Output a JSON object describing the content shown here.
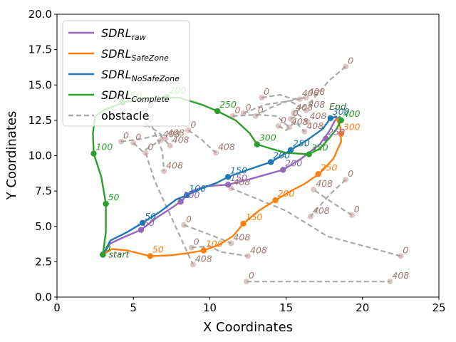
{
  "chart_data": {
    "type": "line",
    "xlabel": "X Coordinates",
    "ylabel": "Y Coordinates",
    "xlim": [
      0,
      25
    ],
    "ylim": [
      0,
      20
    ],
    "xticks": [
      "0",
      "5",
      "10",
      "15",
      "20",
      "25"
    ],
    "yticks": [
      "0.0",
      "2.5",
      "5.0",
      "7.5",
      "10.0",
      "12.5",
      "15.0",
      "17.5",
      "20.0"
    ],
    "legend_position": "top-left",
    "start_label": "start",
    "end_label": "End",
    "legend": [
      {
        "key": "raw",
        "base": "SDRL",
        "sub": "raw",
        "color": "#9467bd",
        "dashed": false
      },
      {
        "key": "safezone",
        "base": "SDRL",
        "sub": "SafeZone",
        "color": "#ff7f0e",
        "dashed": false
      },
      {
        "key": "nosafezone",
        "base": "SDRL",
        "sub": "NoSafeZone",
        "color": "#1f77b4",
        "dashed": false
      },
      {
        "key": "complete",
        "base": "SDRL",
        "sub": "Complete",
        "color": "#2ca02c",
        "dashed": false
      },
      {
        "key": "obstacle",
        "base": "obstacle",
        "sub": "",
        "color": "#aaaaaa",
        "dashed": true
      }
    ],
    "series": [
      {
        "name": "SDRL_raw",
        "color": "#9467bd",
        "path": [
          [
            3.0,
            3.0
          ],
          [
            3.5,
            3.8
          ],
          [
            4.5,
            4.3
          ],
          [
            5.5,
            4.75
          ],
          [
            6.5,
            5.6
          ],
          [
            7.5,
            6.3
          ],
          [
            8.1,
            6.75
          ],
          [
            8.8,
            7.5
          ],
          [
            9.8,
            7.85
          ],
          [
            11.2,
            7.95
          ],
          [
            12.5,
            8.3
          ],
          [
            13.8,
            8.7
          ],
          [
            14.8,
            9.0
          ],
          [
            16.0,
            9.8
          ],
          [
            17.2,
            10.8
          ],
          [
            17.8,
            11.7
          ],
          [
            18.2,
            12.5
          ],
          [
            18.5,
            12.75
          ]
        ],
        "markers": [
          {
            "x": 3.0,
            "y": 3.0,
            "label": "0"
          },
          {
            "x": 5.5,
            "y": 4.75,
            "label": "50"
          },
          {
            "x": 8.1,
            "y": 6.75,
            "label": "100"
          },
          {
            "x": 11.2,
            "y": 7.95,
            "label": "150"
          },
          {
            "x": 14.8,
            "y": 9.0,
            "label": "200"
          },
          {
            "x": 17.6,
            "y": 11.2,
            "label": "250"
          }
        ]
      },
      {
        "name": "SDRL_SafeZone",
        "color": "#ff7f0e",
        "path": [
          [
            3.0,
            3.0
          ],
          [
            3.6,
            3.4
          ],
          [
            4.6,
            3.3
          ],
          [
            6.1,
            2.9
          ],
          [
            7.4,
            2.95
          ],
          [
            8.5,
            3.1
          ],
          [
            9.6,
            3.3
          ],
          [
            10.6,
            3.7
          ],
          [
            11.5,
            4.3
          ],
          [
            12.2,
            5.2
          ],
          [
            13.2,
            6.1
          ],
          [
            14.3,
            6.85
          ],
          [
            15.3,
            7.5
          ],
          [
            16.2,
            8.0
          ],
          [
            17.2,
            8.75
          ],
          [
            18.1,
            9.8
          ],
          [
            18.6,
            11.0
          ],
          [
            18.55,
            12.0
          ],
          [
            18.3,
            12.6
          ],
          [
            18.2,
            12.8
          ]
        ],
        "markers": [
          {
            "x": 3.0,
            "y": 3.0,
            "label": "0"
          },
          {
            "x": 6.1,
            "y": 2.9,
            "label": "50"
          },
          {
            "x": 9.6,
            "y": 3.3,
            "label": "100"
          },
          {
            "x": 12.2,
            "y": 5.2,
            "label": "150"
          },
          {
            "x": 14.3,
            "y": 6.85,
            "label": "200"
          },
          {
            "x": 17.1,
            "y": 8.7,
            "label": "250"
          },
          {
            "x": 18.6,
            "y": 11.55,
            "label": "300"
          }
        ]
      },
      {
        "name": "SDRL_NoSafeZone",
        "color": "#1f77b4",
        "path": [
          [
            3.0,
            3.0
          ],
          [
            3.5,
            4.0
          ],
          [
            4.6,
            4.6
          ],
          [
            5.6,
            5.25
          ],
          [
            6.7,
            6.0
          ],
          [
            7.8,
            6.9
          ],
          [
            8.5,
            7.2
          ],
          [
            9.5,
            7.7
          ],
          [
            10.5,
            8.1
          ],
          [
            11.2,
            8.5
          ],
          [
            12.5,
            9.0
          ],
          [
            14.0,
            9.55
          ],
          [
            15.3,
            10.4
          ],
          [
            16.5,
            11.2
          ],
          [
            17.4,
            11.9
          ],
          [
            17.9,
            12.65
          ],
          [
            18.3,
            12.75
          ]
        ],
        "markers": [
          {
            "x": 3.0,
            "y": 3.0,
            "label": "0"
          },
          {
            "x": 5.6,
            "y": 5.25,
            "label": "50"
          },
          {
            "x": 8.5,
            "y": 7.2,
            "label": "100"
          },
          {
            "x": 11.2,
            "y": 8.5,
            "label": "150"
          },
          {
            "x": 14.0,
            "y": 9.55,
            "label": "200"
          },
          {
            "x": 15.3,
            "y": 10.4,
            "label": "250"
          },
          {
            "x": 17.9,
            "y": 12.65,
            "label": "300"
          }
        ]
      },
      {
        "name": "SDRL_Complete",
        "color": "#2ca02c",
        "path": [
          [
            3.0,
            3.0
          ],
          [
            3.2,
            4.6
          ],
          [
            3.2,
            6.6
          ],
          [
            2.9,
            8.5
          ],
          [
            2.4,
            10.15
          ],
          [
            2.35,
            11.6
          ],
          [
            2.5,
            12.8
          ],
          [
            3.2,
            13.3
          ],
          [
            4.5,
            13.8
          ],
          [
            6.0,
            14.1
          ],
          [
            8.0,
            14.1
          ],
          [
            9.5,
            13.6
          ],
          [
            10.5,
            13.15
          ],
          [
            11.7,
            12.5
          ],
          [
            12.6,
            11.6
          ],
          [
            13.1,
            10.8
          ],
          [
            14.0,
            10.5
          ],
          [
            15.0,
            10.2
          ],
          [
            16.5,
            10.1
          ],
          [
            17.2,
            10.5
          ],
          [
            17.8,
            11.2
          ],
          [
            18.3,
            11.9
          ],
          [
            18.6,
            12.5
          ],
          [
            18.5,
            12.75
          ]
        ],
        "markers": [
          {
            "x": 3.0,
            "y": 3.0,
            "label": "0"
          },
          {
            "x": 3.2,
            "y": 6.6,
            "label": "50"
          },
          {
            "x": 2.4,
            "y": 10.15,
            "label": "100"
          },
          {
            "x": 4.3,
            "y": 13.75,
            "label": "150"
          },
          {
            "x": 7.2,
            "y": 14.15,
            "label": "200"
          },
          {
            "x": 10.5,
            "y": 13.15,
            "label": "250"
          },
          {
            "x": 13.1,
            "y": 10.8,
            "label": "300"
          },
          {
            "x": 16.5,
            "y": 10.1,
            "label": "350"
          },
          {
            "x": 18.6,
            "y": 12.5,
            "label": "400"
          }
        ]
      }
    ],
    "obstacles": [
      {
        "path": [
          [
            5.8,
            13.2
          ],
          [
            6.9,
            10.3
          ],
          [
            7.0,
            8.9
          ]
        ],
        "start_label": "0",
        "end_label": "408"
      },
      {
        "path": [
          [
            4.2,
            11.0
          ],
          [
            5.6,
            11.2
          ],
          [
            6.7,
            11.5
          ],
          [
            7.4,
            10.7
          ]
        ],
        "start_label": "0",
        "end_label": "408"
      },
      {
        "path": [
          [
            5.0,
            10.9
          ],
          [
            5.6,
            10.3
          ],
          [
            6.8,
            11.1
          ]
        ],
        "start_label": "0",
        "end_label": "408"
      },
      {
        "path": [
          [
            5.8,
            12.2
          ],
          [
            6.6,
            11.7
          ],
          [
            7.1,
            11.2
          ]
        ],
        "start_label": "0",
        "end_label": "408"
      },
      {
        "path": [
          [
            5.8,
            10.2
          ],
          [
            6.4,
            8.2
          ],
          [
            8.9,
            2.3
          ]
        ],
        "start_label": "0",
        "end_label": "408"
      },
      {
        "path": [
          [
            8.6,
            11.8
          ],
          [
            9.4,
            11.2
          ],
          [
            10.4,
            10.2
          ]
        ],
        "start_label": "0",
        "end_label": "408"
      },
      {
        "path": [
          [
            8.8,
            3.5
          ],
          [
            10.0,
            3.6
          ],
          [
            10.7,
            3.2
          ],
          [
            12.5,
            2.9
          ]
        ],
        "start_label": "0",
        "end_label": "408"
      },
      {
        "path": [
          [
            8.3,
            5.1
          ],
          [
            9.8,
            4.5
          ],
          [
            11.0,
            4.0
          ],
          [
            11.4,
            3.8
          ]
        ],
        "start_label": "0",
        "end_label": "408"
      },
      {
        "path": [
          [
            11.5,
            12.8
          ],
          [
            13.1,
            12.9
          ],
          [
            14.4,
            12.8
          ],
          [
            15.2,
            12.0
          ]
        ],
        "start_label": "0",
        "end_label": "408"
      },
      {
        "path": [
          [
            12.2,
            13.0
          ],
          [
            13.6,
            13.6
          ],
          [
            14.8,
            13.8
          ],
          [
            15.9,
            14.0
          ]
        ],
        "start_label": "0",
        "end_label": "408"
      },
      {
        "path": [
          [
            13.0,
            12.8
          ],
          [
            14.0,
            13.4
          ],
          [
            15.2,
            13.9
          ],
          [
            16.3,
            13.2
          ]
        ],
        "start_label": "0",
        "end_label": "408"
      },
      {
        "path": [
          [
            14.5,
            12.1
          ],
          [
            15.0,
            11.8
          ],
          [
            15.6,
            12.4
          ],
          [
            16.2,
            11.7
          ]
        ],
        "start_label": "0",
        "end_label": "408"
      },
      {
        "path": [
          [
            13.4,
            14.1
          ],
          [
            14.6,
            14.3
          ],
          [
            15.5,
            14.0
          ],
          [
            16.3,
            14.1
          ]
        ],
        "start_label": "0",
        "end_label": "408"
      },
      {
        "path": [
          [
            15.3,
            12.6
          ],
          [
            15.8,
            12.9
          ],
          [
            16.4,
            12.4
          ]
        ],
        "start_label": "0",
        "end_label": "408"
      },
      {
        "path": [
          [
            18.9,
            16.3
          ],
          [
            17.8,
            15.3
          ],
          [
            16.7,
            13.9
          ],
          [
            15.5,
            13.0
          ]
        ],
        "start_label": "0",
        "end_label": "408"
      },
      {
        "path": [
          [
            18.9,
            8.3
          ],
          [
            17.8,
            7.2
          ],
          [
            16.6,
            5.7
          ]
        ],
        "start_label": "0",
        "end_label": "408"
      },
      {
        "path": [
          [
            19.3,
            5.8
          ],
          [
            18.0,
            6.7
          ],
          [
            16.8,
            7.6
          ]
        ],
        "start_label": "0",
        "end_label": "408"
      },
      {
        "path": [
          [
            22.5,
            2.9
          ],
          [
            19.8,
            3.7
          ],
          [
            17.7,
            4.3
          ],
          [
            15.0,
            6.1
          ],
          [
            11.4,
            7.7
          ]
        ],
        "start_label": "0",
        "end_label": "408"
      },
      {
        "path": [
          [
            12.4,
            1.1
          ],
          [
            16.0,
            1.1
          ],
          [
            19.8,
            1.1
          ],
          [
            21.8,
            1.1
          ]
        ],
        "start_label": "0",
        "end_label": "408"
      }
    ]
  }
}
